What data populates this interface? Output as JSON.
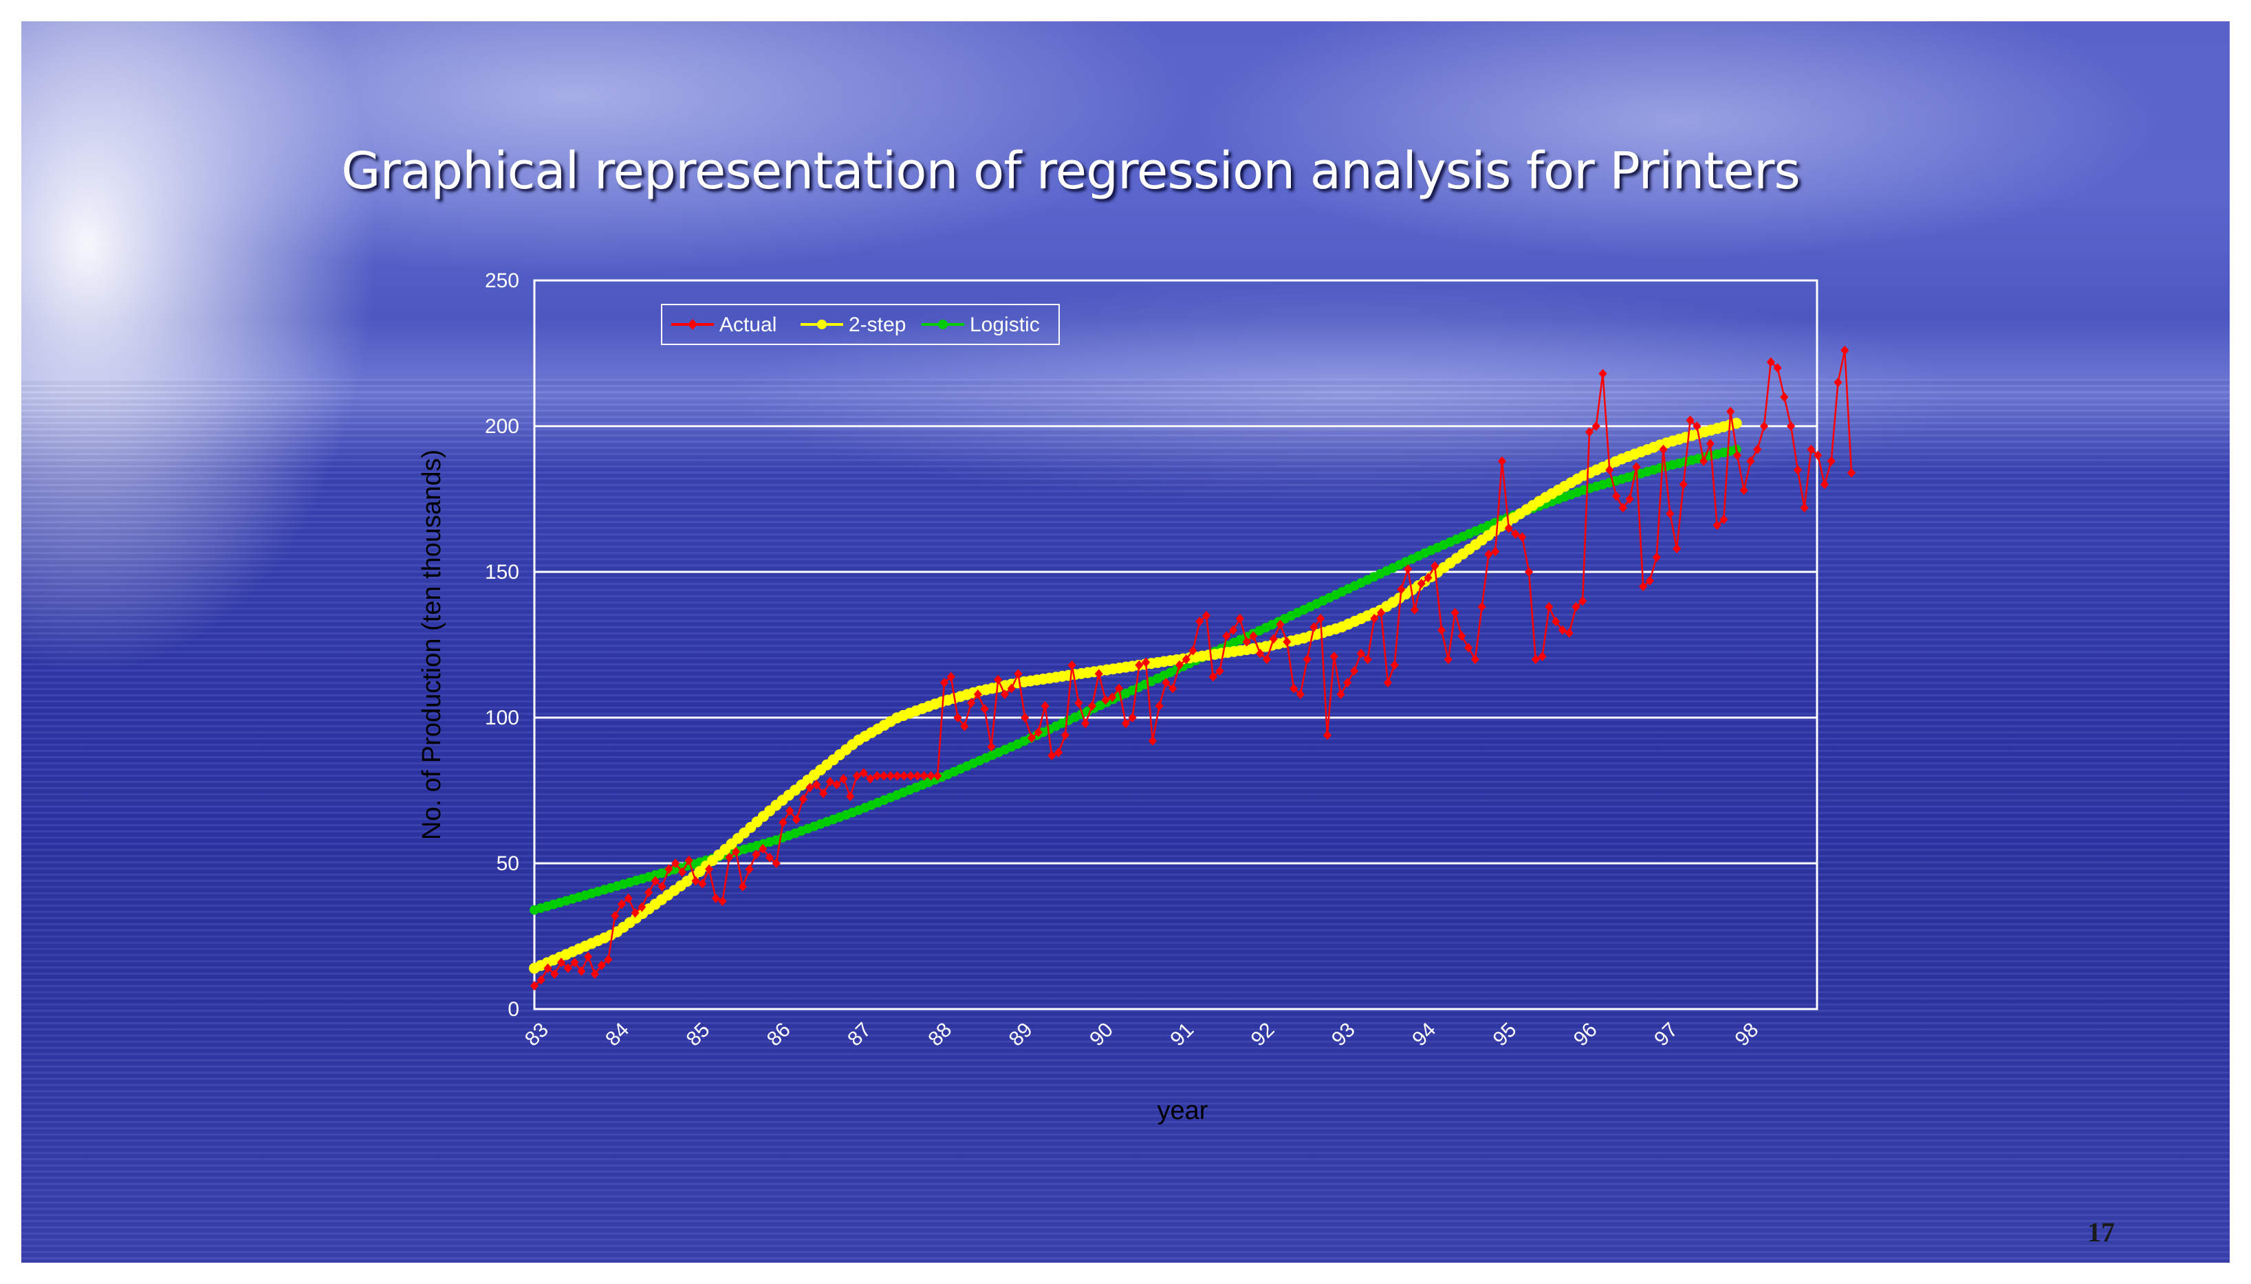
{
  "slide": {
    "title": "Graphical representation of regression analysis for Printers",
    "page_number": "17"
  },
  "chart_data": {
    "type": "line",
    "xlabel": "year",
    "ylabel": "No. of Production (ten thousands)",
    "ylim": [
      0,
      250
    ],
    "yticks": [
      "0",
      "50",
      "100",
      "150",
      "200",
      "250"
    ],
    "x_tick_labels": [
      "83",
      "84",
      "85",
      "86",
      "87",
      "88",
      "89",
      "90",
      "91",
      "92",
      "93",
      "94",
      "95",
      "96",
      "97",
      "98"
    ],
    "x_range_years": [
      83,
      98.9
    ],
    "grid": "horizontal",
    "legend_position": "top-left",
    "series": [
      {
        "name": "Actual",
        "color": "#ff0000",
        "marker": "diamond",
        "x_start": 83,
        "x_step": 0.0833,
        "values": [
          8,
          10,
          14,
          12,
          16,
          14,
          16,
          13,
          18,
          12,
          15,
          17,
          32,
          36,
          38,
          33,
          35,
          40,
          44,
          42,
          48,
          50,
          47,
          51,
          44,
          43,
          48,
          38,
          37,
          52,
          54,
          42,
          48,
          53,
          55,
          52,
          50,
          64,
          68,
          65,
          72,
          76,
          77,
          74,
          78,
          77,
          79,
          73,
          80,
          81,
          79,
          80,
          80,
          80,
          80,
          80,
          80,
          80,
          80,
          80,
          80,
          112,
          114,
          100,
          97,
          105,
          108,
          103,
          90,
          113,
          108,
          110,
          115,
          100,
          93,
          95,
          104,
          87,
          88,
          94,
          118,
          105,
          98,
          104,
          115,
          106,
          107,
          110,
          98,
          100,
          118,
          119,
          92,
          104,
          112,
          110,
          118,
          120,
          123,
          133,
          135,
          114,
          116,
          128,
          130,
          134,
          126,
          128,
          122,
          120,
          127,
          132,
          126,
          110,
          108,
          120,
          131,
          134,
          94,
          121,
          108,
          112,
          116,
          122,
          120,
          134,
          136,
          112,
          118,
          144,
          151,
          137,
          146,
          148,
          152,
          130,
          120,
          136,
          128,
          124,
          120,
          138,
          156,
          157,
          188,
          165,
          163,
          162,
          150,
          120,
          121,
          138,
          133,
          130,
          129,
          138,
          140,
          198,
          200,
          218,
          185,
          176,
          172,
          175,
          186,
          145,
          147,
          155,
          192,
          170,
          158,
          180,
          202,
          200,
          188,
          194,
          166,
          168,
          205,
          190,
          178,
          188,
          192,
          200,
          222,
          220,
          210,
          200,
          185,
          172,
          192,
          190,
          180,
          188,
          215,
          226,
          184
        ]
      },
      {
        "name": "2-step",
        "color": "#ffff00",
        "marker": "circle",
        "points": [
          [
            83.0,
            14
          ],
          [
            83.5,
            20
          ],
          [
            84.0,
            26
          ],
          [
            84.5,
            36
          ],
          [
            85.0,
            46
          ],
          [
            85.5,
            58
          ],
          [
            86.0,
            70
          ],
          [
            86.5,
            81
          ],
          [
            87.0,
            92
          ],
          [
            87.5,
            100
          ],
          [
            88.0,
            105
          ],
          [
            88.5,
            109
          ],
          [
            89.0,
            112
          ],
          [
            89.5,
            114
          ],
          [
            90.0,
            116
          ],
          [
            90.5,
            118
          ],
          [
            91.0,
            120
          ],
          [
            91.5,
            122
          ],
          [
            92.0,
            124
          ],
          [
            92.5,
            127
          ],
          [
            93.0,
            131
          ],
          [
            93.5,
            137
          ],
          [
            94.0,
            146
          ],
          [
            94.5,
            156
          ],
          [
            95.0,
            166
          ],
          [
            95.5,
            175
          ],
          [
            96.0,
            183
          ],
          [
            96.5,
            189
          ],
          [
            97.0,
            194
          ],
          [
            97.5,
            198
          ],
          [
            97.9,
            201
          ]
        ]
      },
      {
        "name": "Logistic",
        "color": "#00cc00",
        "marker": "circle",
        "points": [
          [
            83.0,
            34
          ],
          [
            84.0,
            42
          ],
          [
            85.0,
            50
          ],
          [
            86.0,
            58
          ],
          [
            87.0,
            68
          ],
          [
            88.0,
            79
          ],
          [
            89.0,
            91
          ],
          [
            90.0,
            104
          ],
          [
            91.0,
            117
          ],
          [
            92.0,
            130
          ],
          [
            93.0,
            143
          ],
          [
            94.0,
            156
          ],
          [
            95.0,
            168
          ],
          [
            96.0,
            178
          ],
          [
            97.0,
            186
          ],
          [
            97.9,
            192
          ]
        ]
      }
    ]
  }
}
